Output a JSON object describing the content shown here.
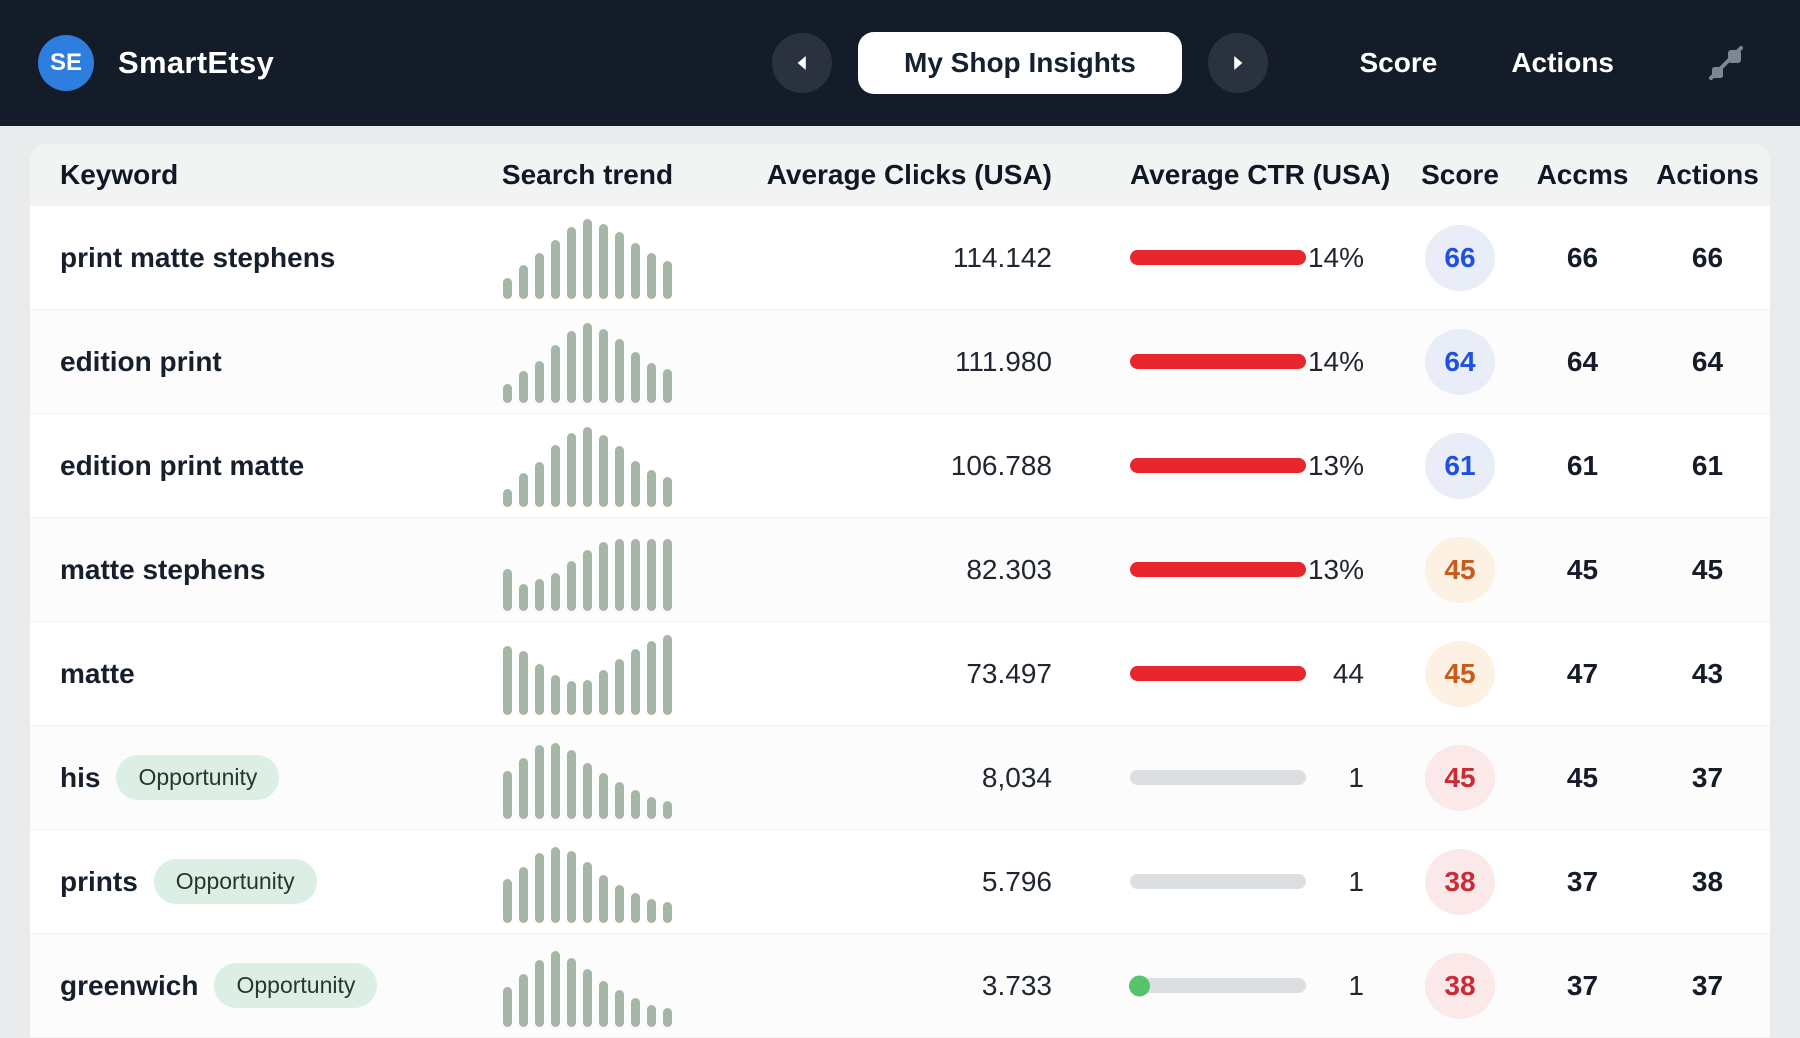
{
  "brand": {
    "initials": "SE",
    "name": "SmartEtsy"
  },
  "nav": {
    "pill": "My Shop Insights",
    "links": [
      "Score",
      "Actions"
    ]
  },
  "table": {
    "columns": [
      "Keyword",
      "Search trend",
      "Average Clicks (USA)",
      "Average CTR (USA)",
      "Score",
      "Accms",
      "Actions"
    ],
    "rows": [
      {
        "keyword": "print matte stephens",
        "badge": null,
        "trend": [
          26,
          42,
          58,
          74,
          90,
          100,
          94,
          84,
          70,
          58,
          48
        ],
        "clicks": "114.142",
        "ctr": "14%",
        "ctr_style": "red",
        "score": "66",
        "score_style": "blue",
        "accms": "66",
        "actions": "66"
      },
      {
        "keyword": "edition print",
        "badge": null,
        "trend": [
          24,
          40,
          52,
          72,
          90,
          100,
          92,
          80,
          64,
          50,
          42
        ],
        "clicks": "111.980",
        "ctr": "14%",
        "ctr_style": "red",
        "score": "64",
        "score_style": "blue",
        "accms": "64",
        "actions": "64"
      },
      {
        "keyword": "edition print matte",
        "badge": null,
        "trend": [
          22,
          42,
          56,
          78,
          92,
          100,
          90,
          76,
          58,
          46,
          38
        ],
        "clicks": "106.788",
        "ctr": "13%",
        "ctr_style": "red",
        "score": "61",
        "score_style": "blue",
        "accms": "61",
        "actions": "61"
      },
      {
        "keyword": "matte stephens",
        "badge": null,
        "trend": [
          52,
          34,
          40,
          48,
          62,
          76,
          86,
          90,
          90,
          90,
          90
        ],
        "clicks": "82.303",
        "ctr": "13%",
        "ctr_style": "red",
        "score": "45",
        "score_style": "orange",
        "accms": "45",
        "actions": "45"
      },
      {
        "keyword": "matte",
        "badge": null,
        "trend": [
          86,
          80,
          64,
          50,
          42,
          44,
          56,
          70,
          82,
          92,
          100
        ],
        "clicks": "73.497",
        "ctr": "44",
        "ctr_style": "red",
        "score": "45",
        "score_style": "orange",
        "accms": "47",
        "actions": "43"
      },
      {
        "keyword": "his",
        "badge": "Opportunity",
        "trend": [
          60,
          76,
          92,
          95,
          86,
          70,
          58,
          46,
          36,
          28,
          22
        ],
        "clicks": "8,034",
        "ctr": "1",
        "ctr_style": "gray",
        "score": "45",
        "score_style": "red",
        "accms": "45",
        "actions": "37"
      },
      {
        "keyword": "prints",
        "badge": "Opportunity",
        "trend": [
          55,
          70,
          88,
          95,
          90,
          76,
          60,
          48,
          38,
          30,
          26
        ],
        "clicks": "5.796",
        "ctr": "1",
        "ctr_style": "gray",
        "score": "38",
        "score_style": "red",
        "accms": "37",
        "actions": "38"
      },
      {
        "keyword": "greenwich",
        "badge": "Opportunity",
        "trend": [
          50,
          66,
          84,
          95,
          86,
          72,
          58,
          46,
          36,
          28,
          24
        ],
        "clicks": "3.733",
        "ctr": "1",
        "ctr_style": "gray-dot",
        "score": "38",
        "score_style": "red",
        "accms": "37",
        "actions": "37"
      }
    ]
  },
  "colors": {
    "header_bg": "#141b29",
    "logo_bg": "#2e7ee0",
    "sparkline_bar": "#a6b6a6",
    "ctr_red": "#e8262e",
    "ctr_gray": "#dcdfe1",
    "ctr_dot": "#57c46c",
    "score_blue_text": "#2050df",
    "score_blue_bg": "#e8edf8",
    "score_orange_text": "#c95a19",
    "score_orange_bg": "#fcf1e3",
    "score_red_text": "#ca2b35",
    "score_red_bg": "#fbe9ea",
    "badge_bg": "#dcefe4",
    "badge_text": "#2a362f"
  }
}
